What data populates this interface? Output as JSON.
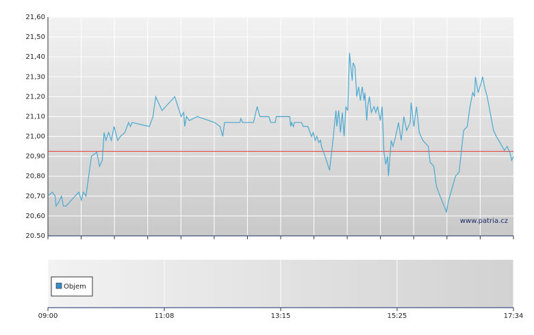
{
  "chart_data": [
    {
      "type": "line",
      "watermark": "www.patria.cz",
      "xlim": [
        0,
        514
      ],
      "ylim": [
        20.5,
        21.6
      ],
      "yticks": [
        {
          "value": 20.5,
          "label": "20.50"
        },
        {
          "value": 20.6,
          "label": "20,60"
        },
        {
          "value": 20.7,
          "label": "20,70"
        },
        {
          "value": 20.8,
          "label": "20,80"
        },
        {
          "value": 20.9,
          "label": "20,90"
        },
        {
          "value": 21.0,
          "label": "21,00"
        },
        {
          "value": 21.1,
          "label": "21,10"
        },
        {
          "value": 21.2,
          "label": "21,20"
        },
        {
          "value": 21.3,
          "label": "21,30"
        },
        {
          "value": 21.4,
          "label": "21,40"
        },
        {
          "value": 21.5,
          "label": "21,50"
        },
        {
          "value": 21.6,
          "label": "21,60"
        }
      ],
      "grid": true,
      "reference_line": {
        "value": 20.925,
        "color": "#e03a3a"
      },
      "series": [
        {
          "color": "#4aa8d0",
          "x": [
            0,
            5,
            8,
            9,
            12,
            15,
            17,
            20,
            34,
            37,
            39,
            42,
            48,
            54,
            57,
            60,
            62,
            64,
            67,
            70,
            73,
            77,
            80,
            85,
            89,
            91,
            93,
            112,
            116,
            119,
            126,
            130,
            140,
            145,
            147,
            150,
            151,
            153,
            156,
            165,
            184,
            190,
            193,
            195,
            212,
            213,
            215,
            227,
            231,
            234,
            244,
            246,
            251,
            252,
            259,
            267,
            268,
            269,
            271,
            272,
            280,
            282,
            287,
            291,
            293,
            295,
            297,
            299,
            301,
            302,
            306,
            311,
            314,
            318,
            319,
            321,
            323,
            325,
            327,
            329,
            331,
            333,
            336,
            337,
            339,
            341,
            343,
            345,
            347,
            349,
            350,
            352,
            353,
            355,
            357,
            360,
            362,
            364,
            367,
            369,
            371,
            373,
            375,
            376,
            379,
            381,
            384,
            387,
            390,
            393,
            396,
            400,
            401,
            404,
            407,
            410,
            414,
            420,
            422,
            426,
            429,
            433,
            440,
            442,
            445,
            450,
            454,
            459,
            463,
            466,
            469,
            471,
            472,
            475,
            479,
            480,
            482,
            485,
            490,
            492,
            495,
            499,
            504,
            507,
            510,
            512,
            514
          ],
          "values": [
            20.7,
            20.72,
            20.7,
            20.65,
            20.67,
            20.7,
            20.65,
            20.65,
            20.72,
            20.68,
            20.72,
            20.7,
            20.9,
            20.92,
            20.85,
            20.88,
            21.02,
            20.98,
            21.02,
            20.98,
            21.05,
            20.98,
            21.0,
            21.02,
            21.07,
            21.05,
            21.07,
            21.05,
            21.1,
            21.2,
            21.13,
            21.15,
            21.2,
            21.13,
            21.1,
            21.12,
            21.05,
            21.1,
            21.08,
            21.1,
            21.07,
            21.05,
            21.0,
            21.07,
            21.07,
            21.09,
            21.07,
            21.07,
            21.15,
            21.1,
            21.1,
            21.07,
            21.07,
            21.1,
            21.1,
            21.1,
            21.05,
            21.07,
            21.05,
            21.07,
            21.07,
            21.05,
            21.05,
            21.0,
            21.02,
            20.98,
            21.0,
            20.97,
            20.98,
            20.95,
            20.9,
            20.83,
            20.95,
            21.13,
            21.05,
            21.13,
            21.02,
            21.12,
            21.0,
            21.15,
            21.13,
            21.42,
            21.28,
            21.37,
            21.35,
            21.2,
            21.25,
            21.18,
            21.25,
            21.18,
            21.22,
            21.08,
            21.15,
            21.2,
            21.12,
            21.15,
            21.12,
            21.15,
            21.08,
            21.15,
            20.92,
            20.86,
            20.9,
            20.8,
            20.98,
            20.95,
            21.0,
            21.07,
            20.98,
            21.1,
            21.03,
            21.07,
            21.17,
            21.05,
            21.15,
            21.02,
            20.98,
            20.95,
            20.87,
            20.85,
            20.75,
            20.7,
            20.62,
            20.67,
            20.72,
            20.8,
            20.82,
            21.03,
            21.05,
            21.15,
            21.22,
            21.2,
            21.3,
            21.22,
            21.28,
            21.3,
            21.25,
            21.2,
            21.08,
            21.03,
            21.0,
            20.97,
            20.93,
            20.95,
            20.92,
            20.88,
            20.9
          ]
        }
      ]
    },
    {
      "type": "bar",
      "xlim": [
        0,
        514
      ],
      "xticks": [
        {
          "value": 0,
          "label": "09:00"
        },
        {
          "value": 128.5,
          "label": "11:08"
        },
        {
          "value": 257,
          "label": "13:15"
        },
        {
          "value": 385.5,
          "label": "15:25"
        },
        {
          "value": 514,
          "label": "17:34"
        }
      ],
      "grid": true,
      "series": [
        {
          "name": "Objem",
          "color": "#3a8fc8",
          "values": []
        }
      ]
    }
  ]
}
